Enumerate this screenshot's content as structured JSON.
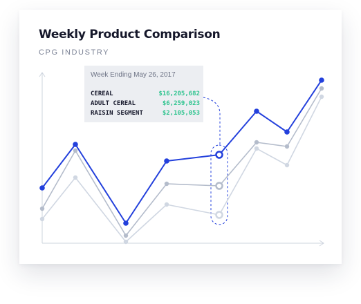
{
  "title": "Weekly Product Comparison",
  "subtitle": "CPG INDUSTRY",
  "colors": {
    "primary": "#2340dc",
    "secondary": "#b4bccb",
    "tertiary": "#d0d7e2",
    "value_green": "#2fc48f"
  },
  "tooltip": {
    "header": "Week Ending May 26, 2017",
    "rows": [
      {
        "label": "CEREAL",
        "value": "$16,205,682"
      },
      {
        "label": "ADULT CEREAL",
        "value": "$6,259,023"
      },
      {
        "label": "RAISIN SEGMENT",
        "value": "$2,105,053"
      }
    ]
  },
  "chart_data": {
    "type": "line",
    "title": "Weekly Product Comparison",
    "subtitle": "CPG INDUSTRY",
    "x": [
      1,
      2,
      3,
      4,
      5,
      6,
      7,
      8
    ],
    "highlight_index": 4,
    "grid": false,
    "series": [
      {
        "name": "CEREAL",
        "values": [
          28,
          49,
          11,
          41,
          44,
          65,
          55,
          80
        ]
      },
      {
        "name": "ADULT CEREAL",
        "values": [
          18,
          46,
          5,
          30,
          29,
          50,
          48,
          76
        ]
      },
      {
        "name": "RAISIN SEGMENT",
        "values": [
          13,
          33,
          2,
          20,
          15,
          47,
          39,
          72
        ]
      }
    ]
  }
}
